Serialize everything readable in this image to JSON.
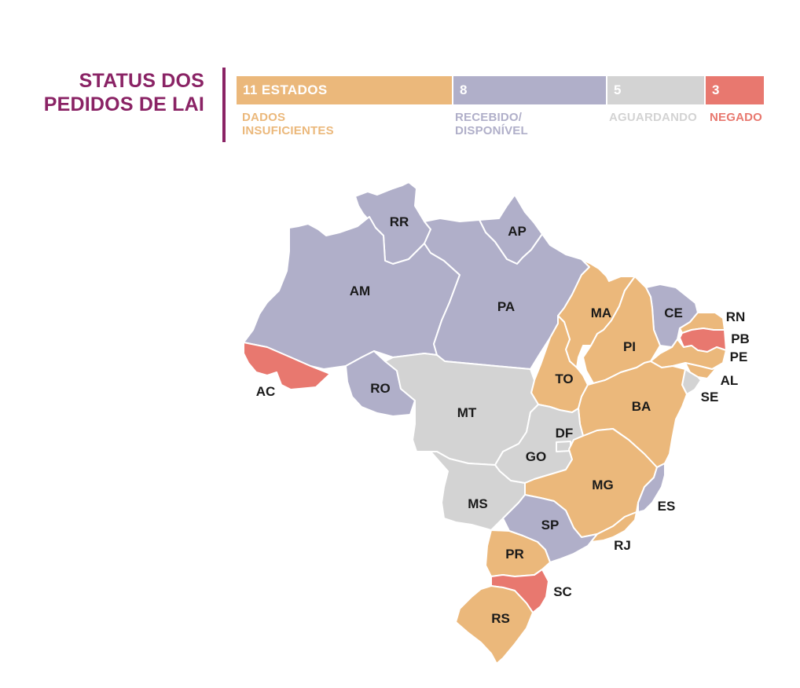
{
  "title": {
    "line1": "STATUS DOS",
    "line2": "PEDIDOS DE LAI"
  },
  "colors": {
    "dados_insuficientes": "#ebb87b",
    "recebido_disponivel": "#b0afc9",
    "aguardando": "#d3d3d3",
    "negado": "#e8786f",
    "title": "#8a2365"
  },
  "summary": [
    {
      "key": "dados_insuficientes",
      "count_label": "11 ESTADOS",
      "count": 11,
      "label_lines": [
        "DADOS",
        "INSUFICIENTES"
      ]
    },
    {
      "key": "recebido_disponivel",
      "count_label": "8",
      "count": 8,
      "label_lines": [
        "RECEBIDO/",
        "DISPONÍVEL"
      ]
    },
    {
      "key": "aguardando",
      "count_label": "5",
      "count": 5,
      "label_lines": [
        "AGUARDANDO"
      ]
    },
    {
      "key": "negado",
      "count_label": "3",
      "count": 3,
      "label_lines": [
        "NEGADO"
      ]
    }
  ],
  "states": {
    "RR": {
      "label": "RR",
      "status": "recebido_disponivel"
    },
    "AP": {
      "label": "AP",
      "status": "recebido_disponivel"
    },
    "AM": {
      "label": "AM",
      "status": "recebido_disponivel"
    },
    "PA": {
      "label": "PA",
      "status": "recebido_disponivel"
    },
    "MA": {
      "label": "MA",
      "status": "dados_insuficientes"
    },
    "CE": {
      "label": "CE",
      "status": "recebido_disponivel"
    },
    "RN": {
      "label": "RN",
      "status": "dados_insuficientes"
    },
    "PB": {
      "label": "PB",
      "status": "negado"
    },
    "PE": {
      "label": "PE",
      "status": "dados_insuficientes"
    },
    "AL": {
      "label": "AL",
      "status": "dados_insuficientes"
    },
    "SE": {
      "label": "SE",
      "status": "aguardando"
    },
    "PI": {
      "label": "PI",
      "status": "dados_insuficientes"
    },
    "AC": {
      "label": "AC",
      "status": "negado"
    },
    "RO": {
      "label": "RO",
      "status": "recebido_disponivel"
    },
    "TO": {
      "label": "TO",
      "status": "dados_insuficientes"
    },
    "BA": {
      "label": "BA",
      "status": "dados_insuficientes"
    },
    "MT": {
      "label": "MT",
      "status": "aguardando"
    },
    "DF": {
      "label": "DF",
      "status": "aguardando"
    },
    "GO": {
      "label": "GO",
      "status": "aguardando"
    },
    "MG": {
      "label": "MG",
      "status": "dados_insuficientes"
    },
    "ES": {
      "label": "ES",
      "status": "recebido_disponivel"
    },
    "MS": {
      "label": "MS",
      "status": "aguardando"
    },
    "SP": {
      "label": "SP",
      "status": "recebido_disponivel"
    },
    "RJ": {
      "label": "RJ",
      "status": "dados_insuficientes"
    },
    "PR": {
      "label": "PR",
      "status": "dados_insuficientes"
    },
    "SC": {
      "label": "SC",
      "status": "negado"
    },
    "RS": {
      "label": "RS",
      "status": "dados_insuficientes"
    }
  }
}
